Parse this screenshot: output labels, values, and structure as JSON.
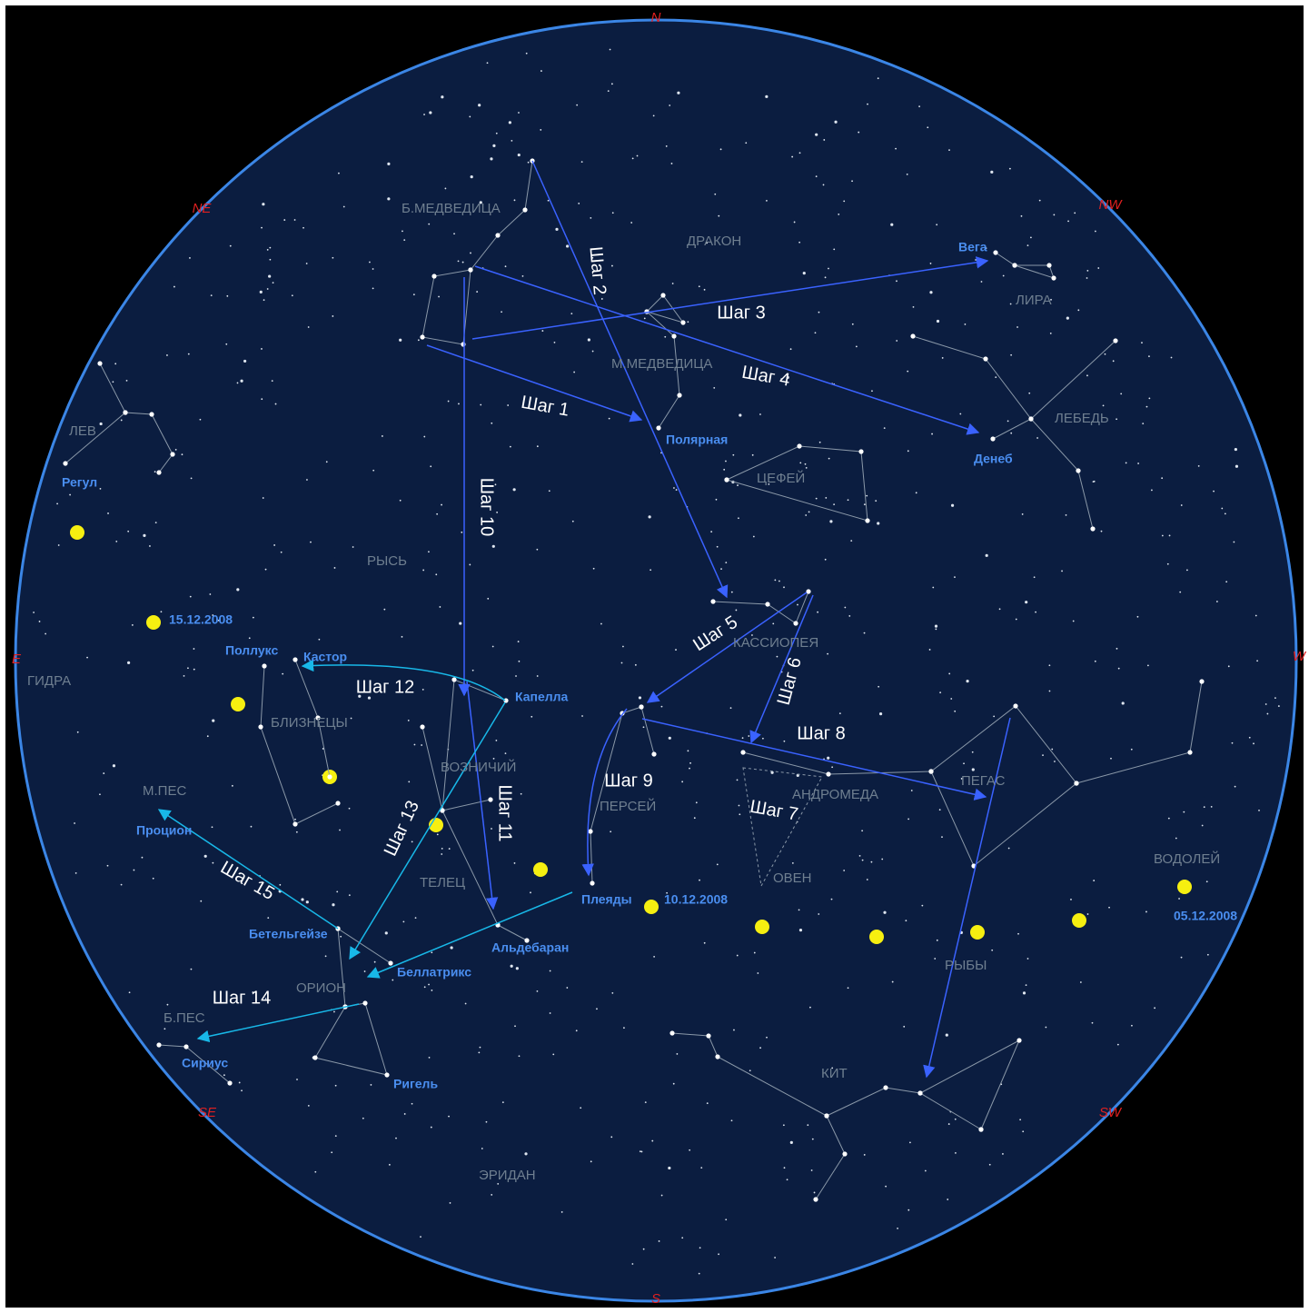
{
  "compass": [
    "N",
    "NE",
    "NW",
    "E",
    "W",
    "SE",
    "SW",
    "S"
  ],
  "constellations": [
    "Б.МЕДВЕДИЦА",
    "ДРАКОН",
    "ЛИРА",
    "М.МЕДВЕДИЦА",
    "ЛЕБЕДЬ",
    "ЛЕВ",
    "ЦЕФЕЙ",
    "РЫСЬ",
    "КАССИОПЕЯ",
    "ГИДРА",
    "БЛИЗНЕЦЫ",
    "ВОЗНИЧИЙ",
    "ПЕРСЕЙ",
    "АНДРОМЕДА",
    "ПЕГАС",
    "М.ПЕС",
    "ТЕЛЕЦ",
    "ОВЕН",
    "ВОДОЛЕЙ",
    "РЫБЫ",
    "ОРИОН",
    "Б.ПЕС",
    "КИТ",
    "ЭРИДАН"
  ],
  "stars": [
    "Вега",
    "Полярная",
    "Денеб",
    "Регул",
    "Поллукс",
    "Кастор",
    "Капелла",
    "Процион",
    "Плеяды",
    "Бетельгейзе",
    "Альдебаран",
    "Беллатрикс",
    "Сириус",
    "Ригель"
  ],
  "dates": [
    "15.12.2008",
    "10.12.2008",
    "05.12.2008"
  ],
  "steps": [
    "Шаг 1",
    "Шаг 2",
    "Шаг 3",
    "Шаг 4",
    "Шаг 5",
    "Шаг 6",
    "Шаг 7",
    "Шаг 8",
    "Шаг 9",
    "Шаг 10",
    "Шаг 11",
    "Шаг 12",
    "Шаг 13",
    "Шаг 14",
    "Шаг 15"
  ]
}
